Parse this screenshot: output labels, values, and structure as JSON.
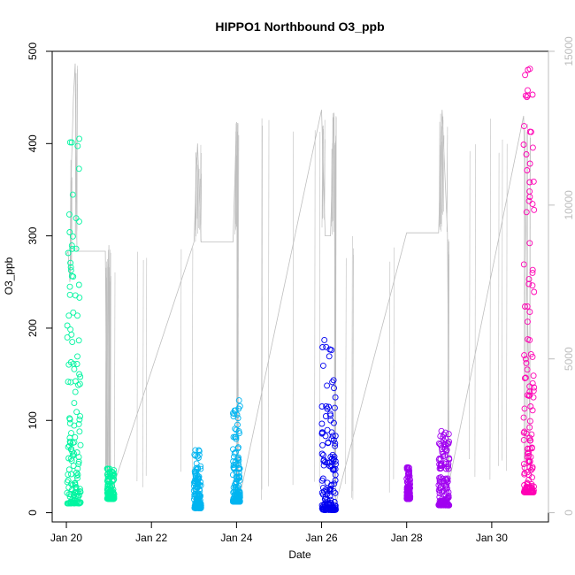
{
  "chart_data": {
    "type": "scatter",
    "title": "HIPPO1 Northbound O3_ppb",
    "xlabel": "Date",
    "ylabel": "O3_ppb",
    "x_axis": {
      "type": "date",
      "range": [
        "2009-01-19T16:00",
        "2009-01-31T08:00"
      ],
      "ticks": [
        {
          "date": "2009-01-20",
          "label": "Jan 20"
        },
        {
          "date": "2009-01-22",
          "label": "Jan 22"
        },
        {
          "date": "2009-01-24",
          "label": "Jan 24"
        },
        {
          "date": "2009-01-26",
          "label": "Jan 26"
        },
        {
          "date": "2009-01-28",
          "label": "Jan 28"
        },
        {
          "date": "2009-01-30",
          "label": "Jan 30"
        }
      ]
    },
    "y_axis": {
      "range": [
        -10,
        500
      ],
      "ticks": [
        {
          "value": 0,
          "label": "0"
        },
        {
          "value": 100,
          "label": "100"
        },
        {
          "value": 200,
          "label": "200"
        },
        {
          "value": 300,
          "label": "300"
        },
        {
          "value": 400,
          "label": "400"
        },
        {
          "value": 500,
          "label": "500"
        }
      ]
    },
    "y2_axis": {
      "color": "#bdbdbd",
      "range": [
        -300,
        15000
      ],
      "ticks": [
        {
          "value": 0,
          "label": "0"
        },
        {
          "value": 5000,
          "label": "5000"
        },
        {
          "value": 10000,
          "label": "10000"
        },
        {
          "value": 15000,
          "label": "15000"
        }
      ]
    },
    "altitude_line": {
      "color": "#bebebe",
      "points": [
        {
          "date": "2009-01-20T00:00",
          "alt": 8400
        },
        {
          "date": "2009-01-20T01:00",
          "alt": 8500
        },
        {
          "date": "2009-01-20T02:00",
          "alt": 7500
        },
        {
          "date": "2009-01-20T03:00",
          "alt": 11500
        },
        {
          "date": "2009-01-20T04:00",
          "alt": 13500
        },
        {
          "date": "2009-01-20T05:00",
          "alt": 14600
        },
        {
          "date": "2009-01-20T06:00",
          "alt": 8500
        },
        {
          "date": "2009-01-20T12:00",
          "alt": 8500
        },
        {
          "date": "2009-01-20T22:00",
          "alt": 8500
        },
        {
          "date": "2009-01-20T23:00",
          "alt": 1000
        },
        {
          "date": "2009-01-21T00:00",
          "alt": 8700
        },
        {
          "date": "2009-01-21T01:00",
          "alt": 600
        },
        {
          "date": "2009-01-23T00:00",
          "alt": 8800
        },
        {
          "date": "2009-01-23T02:00",
          "alt": 12000
        },
        {
          "date": "2009-01-23T04:00",
          "alt": 8800
        },
        {
          "date": "2009-01-23T22:00",
          "alt": 8800
        },
        {
          "date": "2009-01-24T00:00",
          "alt": 12700
        },
        {
          "date": "2009-01-24T01:00",
          "alt": 300
        },
        {
          "date": "2009-01-26T00:00",
          "alt": 13100
        },
        {
          "date": "2009-01-26T02:00",
          "alt": 9000
        },
        {
          "date": "2009-01-26T05:00",
          "alt": 9000
        },
        {
          "date": "2009-01-26T07:00",
          "alt": 13000
        },
        {
          "date": "2009-01-26T08:00",
          "alt": 300
        },
        {
          "date": "2009-01-28T00:00",
          "alt": 9100
        },
        {
          "date": "2009-01-28T18:00",
          "alt": 9100
        },
        {
          "date": "2009-01-28T20:00",
          "alt": 13100
        },
        {
          "date": "2009-01-28T23:00",
          "alt": 9100
        },
        {
          "date": "2009-01-29T00:00",
          "alt": 1000
        },
        {
          "date": "2009-01-30T18:00",
          "alt": 12900
        },
        {
          "date": "2009-01-30T22:00",
          "alt": 1200
        }
      ]
    },
    "series": [
      {
        "color": "#00f5a0",
        "x_range": [
          "2009-01-20T00:00",
          "2009-01-20T08:00"
        ],
        "y_low": 10,
        "y_high": 410
      },
      {
        "color": "#00f5a0",
        "x_range": [
          "2009-01-20T23:00",
          "2009-01-21T03:00"
        ],
        "y_low": 15,
        "y_high": 48
      },
      {
        "color": "#00b4f0",
        "x_range": [
          "2009-01-23T00:00",
          "2009-01-23T04:00"
        ],
        "y_low": 5,
        "y_high": 68
      },
      {
        "color": "#00b4f0",
        "x_range": [
          "2009-01-23T22:00",
          "2009-01-24T02:00"
        ],
        "y_low": 12,
        "y_high": 125
      },
      {
        "color": "#0000f0",
        "x_range": [
          "2009-01-26T00:00",
          "2009-01-26T08:00"
        ],
        "y_low": 3,
        "y_high": 190
      },
      {
        "color": "#a000f0",
        "x_range": [
          "2009-01-28T00:00",
          "2009-01-28T02:00"
        ],
        "y_low": 15,
        "y_high": 50
      },
      {
        "color": "#a000f0",
        "x_range": [
          "2009-01-28T18:00",
          "2009-01-29T00:00"
        ],
        "y_low": 8,
        "y_high": 90
      },
      {
        "color": "#ff00b4",
        "x_range": [
          "2009-01-30T18:00",
          "2009-01-31T00:00"
        ],
        "y_low": 22,
        "y_high": 485
      }
    ]
  }
}
